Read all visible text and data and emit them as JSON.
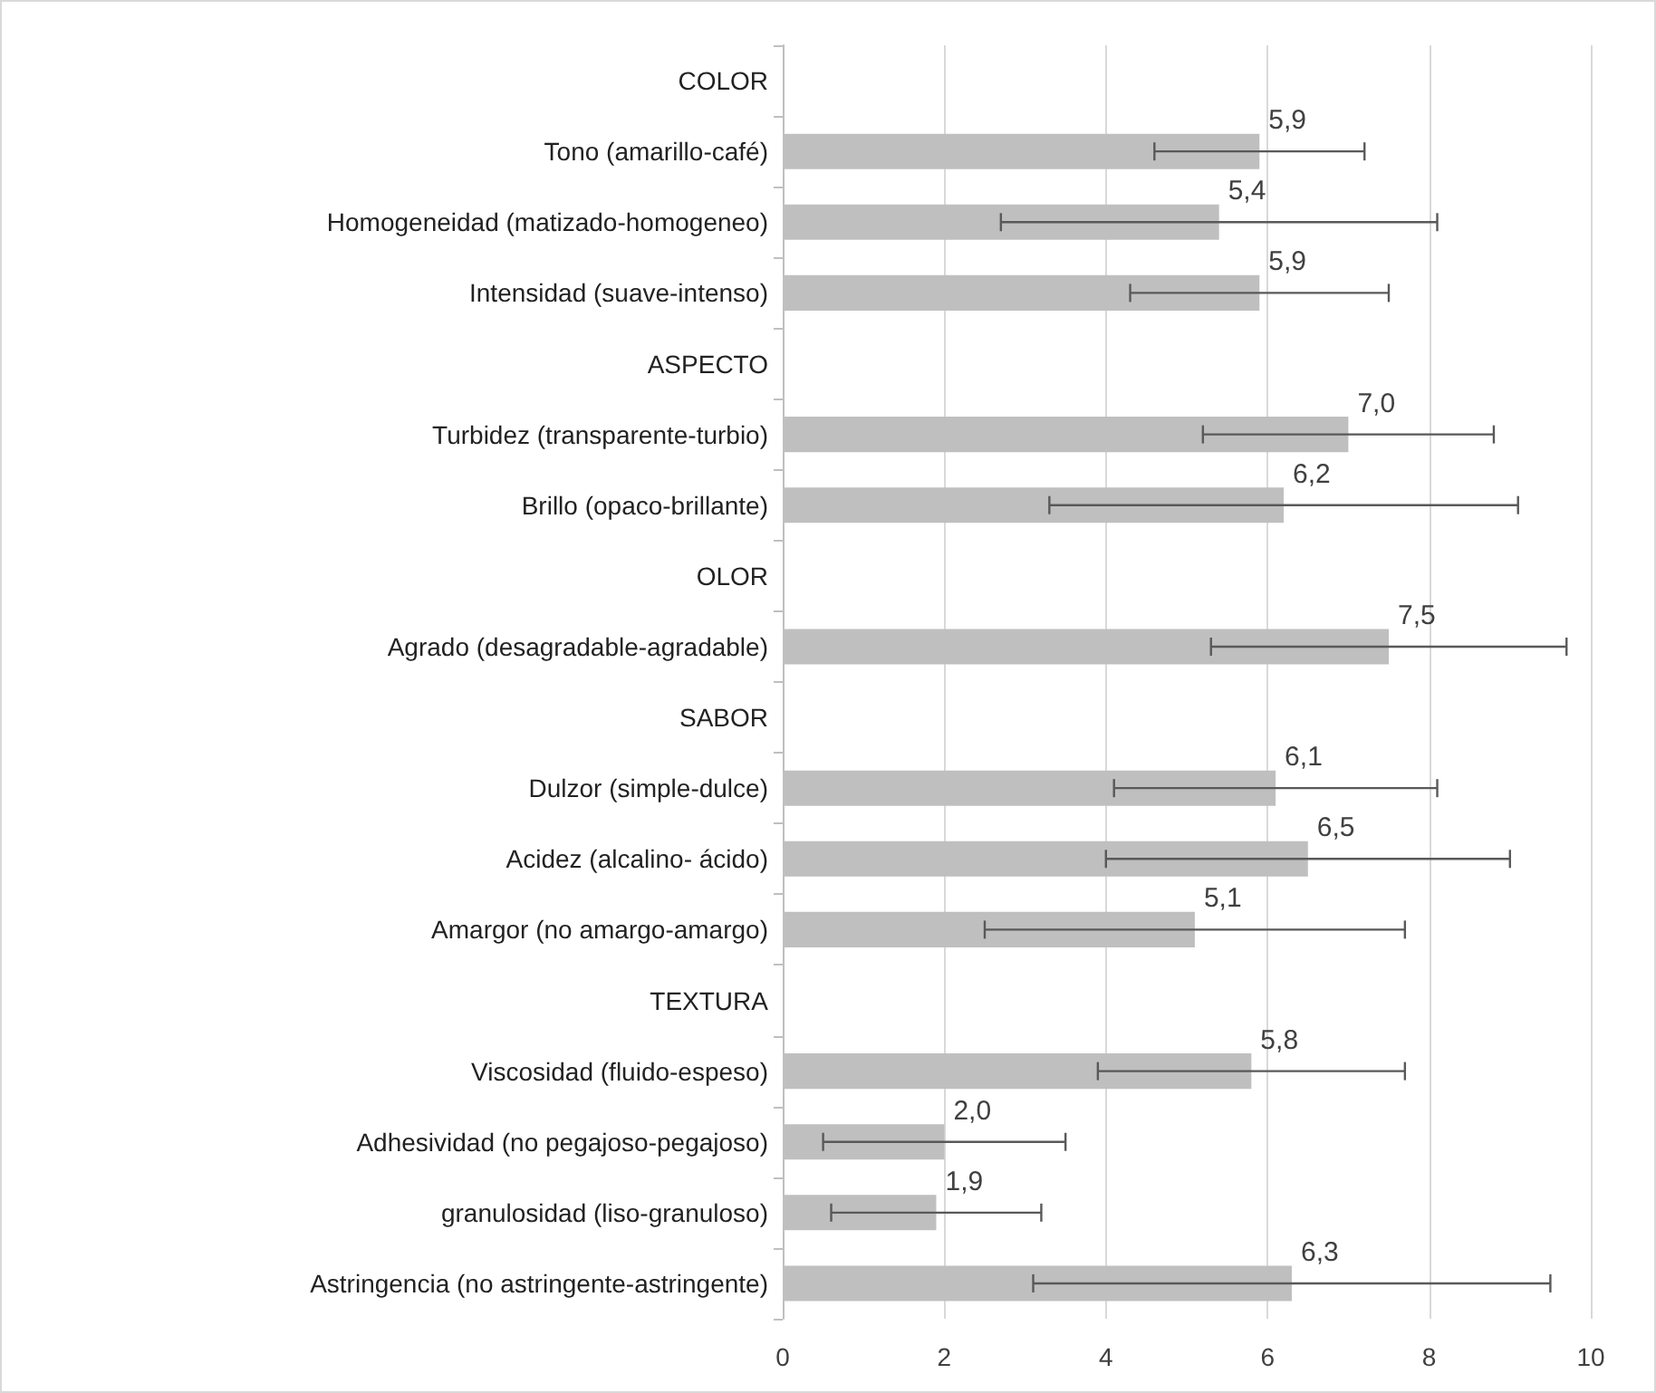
{
  "chart_data": {
    "type": "bar",
    "orientation": "horizontal",
    "categories": [
      "COLOR",
      "Tono (amarillo-café)",
      "Homogeneidad (matizado-homogeneo)",
      "Intensidad (suave-intenso)",
      "ASPECTO",
      "Turbidez (transparente-turbio)",
      "Brillo (opaco-brillante)",
      "OLOR",
      "Agrado (desagradable-agradable)",
      "SABOR",
      "Dulzor (simple-dulce)",
      "Acidez (alcalino- ácido)",
      "Amargor (no amargo-amargo)",
      "TEXTURA",
      "Viscosidad (fluido-espeso)",
      "Adhesividad (no pegajoso-pegajoso)",
      "granulosidad (liso-granuloso)",
      "Astringencia (no astringente-astringente)"
    ],
    "values": [
      null,
      5.9,
      5.4,
      5.9,
      null,
      7.0,
      6.2,
      null,
      7.5,
      null,
      6.1,
      6.5,
      5.1,
      null,
      5.8,
      2.0,
      1.9,
      6.3
    ],
    "errors": [
      null,
      1.3,
      2.7,
      1.6,
      null,
      1.8,
      2.9,
      null,
      2.2,
      null,
      2.0,
      2.5,
      2.6,
      null,
      1.9,
      1.5,
      1.3,
      3.2
    ],
    "value_labels": [
      null,
      "5,9",
      "5,4",
      "5,9",
      null,
      "7,0",
      "6,2",
      null,
      "7,5",
      null,
      "6,1",
      "6,5",
      "5,1",
      null,
      "5,8",
      "2,0",
      "1,9",
      "6,3"
    ],
    "color": "#bfbfbf",
    "xlim": [
      0,
      10
    ],
    "xticks": [
      0,
      2,
      4,
      6,
      8,
      10
    ],
    "grid": "x"
  }
}
